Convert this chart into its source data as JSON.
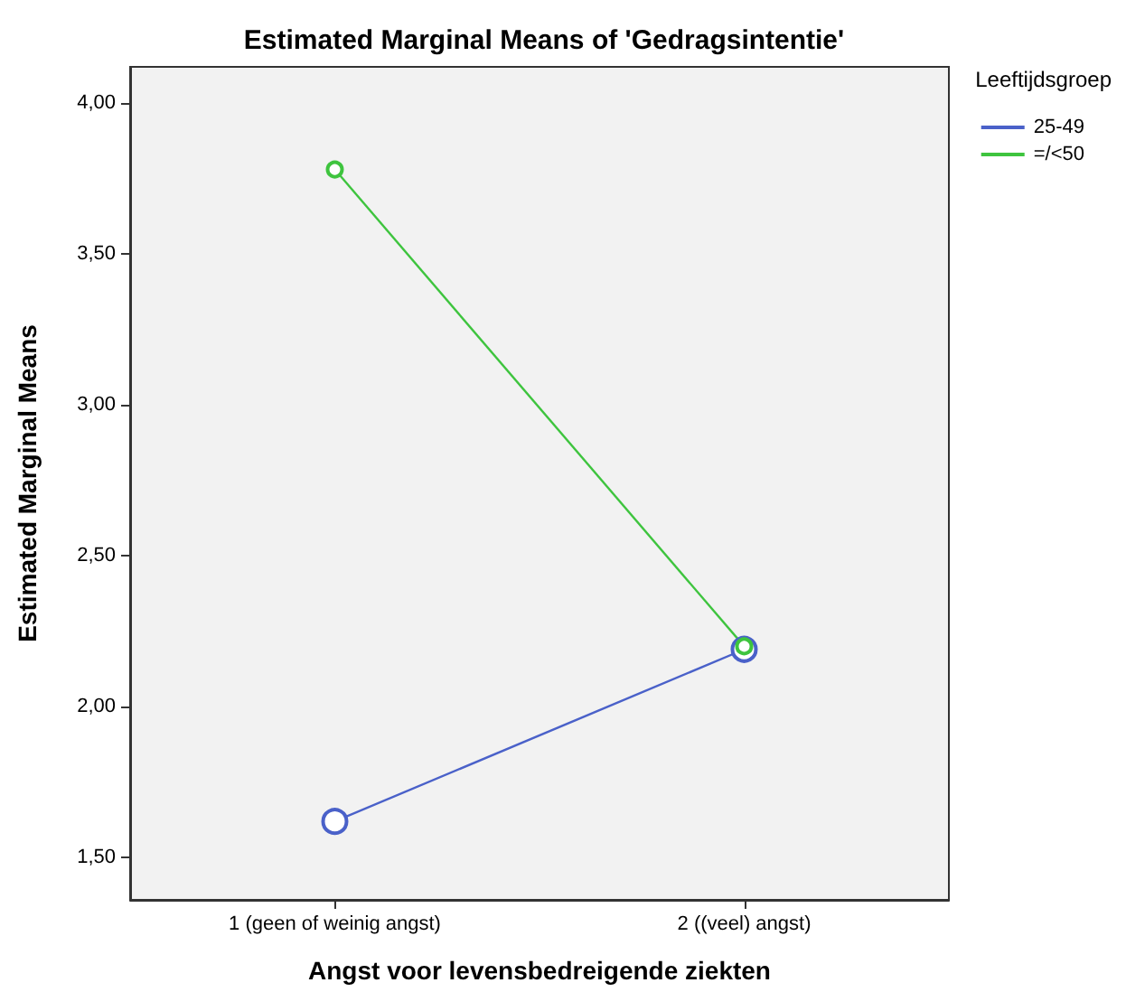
{
  "chart_data": {
    "type": "line",
    "title": "Estimated Marginal Means of 'Gedragsintentie'",
    "xlabel": "Angst voor levensbedreigende ziekten",
    "ylabel": "Estimated Marginal Means",
    "legend_title": "Leeftijdsgroep",
    "categories": [
      "1 (geen of weinig angst)",
      "2 ((veel) angst)"
    ],
    "series": [
      {
        "name": "25-49",
        "color": "#4a61c9",
        "values": [
          1.62,
          2.19
        ]
      },
      {
        "name": "=/<50",
        "color": "#3ec43e",
        "values": [
          3.78,
          2.2
        ]
      }
    ],
    "ylim": [
      1.36,
      4.12
    ],
    "yticks": [
      {
        "value": 1.5,
        "label": "1,50"
      },
      {
        "value": 2,
        "label": "2,00"
      },
      {
        "value": 2.5,
        "label": "2,50"
      },
      {
        "value": 3,
        "label": "3,00"
      },
      {
        "value": 3.5,
        "label": "3,50"
      },
      {
        "value": 4,
        "label": "4,00"
      }
    ],
    "grid": false,
    "legend": "top right",
    "marker": "circle",
    "line_style": "solid"
  }
}
